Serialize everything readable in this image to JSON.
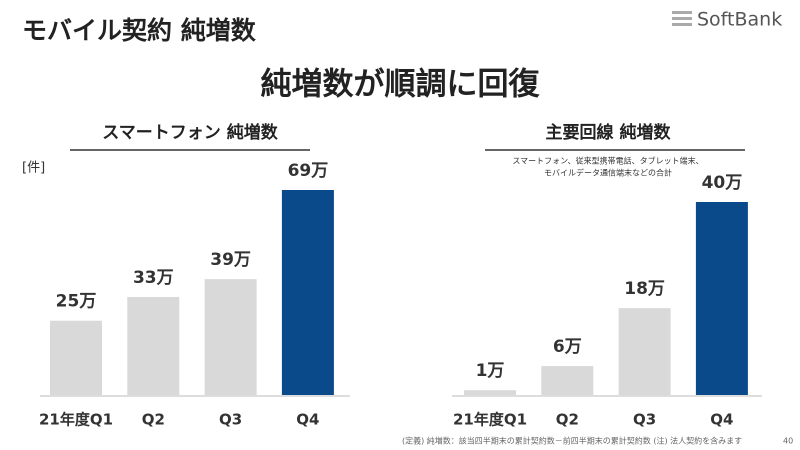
{
  "title": "モバイル契約 純増数",
  "logo": "SoftBank",
  "headline": "純増数が順調に回復",
  "footnote": "(定義) 純増数：該当四半期末の累計契約数－前四半期末の累計契約数 (注) 法人契約を含みます",
  "page_number": "40",
  "chart_data": [
    {
      "type": "bar",
      "title": "スマートフォン 純増数",
      "unit_label": "[件]",
      "categories": [
        "21年度Q1",
        "Q2",
        "Q3",
        "Q4"
      ],
      "values": [
        25,
        33,
        39,
        69
      ],
      "value_labels": [
        "25万",
        "33万",
        "39万",
        "69万"
      ],
      "colors": [
        "#d9d9d9",
        "#d9d9d9",
        "#d9d9d9",
        "#0b4a8a"
      ]
    },
    {
      "type": "bar",
      "title": "主要回線 純増数",
      "note": [
        "スマートフォン、従来型携帯電話、タブレット端末、",
        "モバイルデータ通信端末などの合計"
      ],
      "categories": [
        "21年度Q1",
        "Q2",
        "Q3",
        "Q4"
      ],
      "values": [
        1,
        6,
        18,
        40
      ],
      "value_labels": [
        "1万",
        "6万",
        "18万",
        "40万"
      ],
      "colors": [
        "#d9d9d9",
        "#d9d9d9",
        "#d9d9d9",
        "#0b4a8a"
      ]
    }
  ]
}
